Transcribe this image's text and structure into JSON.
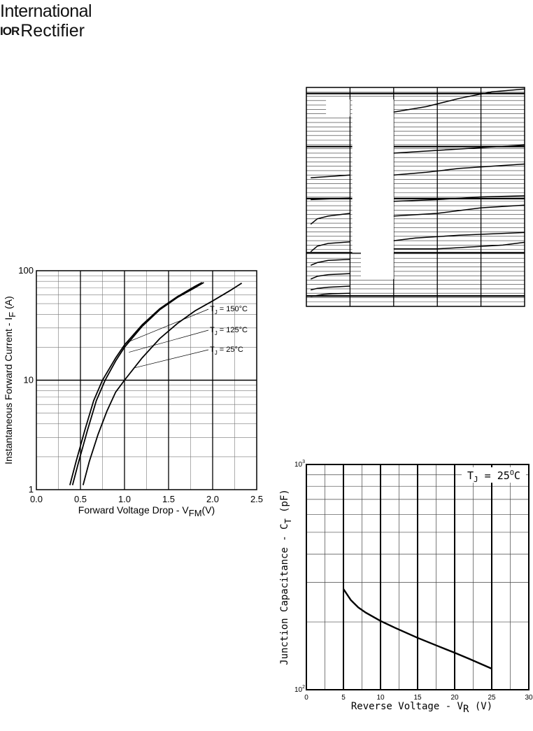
{
  "logo": {
    "line1": "International",
    "mark": "IOR",
    "line2": "Rectifier"
  },
  "chart_data": [
    {
      "type": "line",
      "title": "",
      "xlabel": "Forward Voltage Drop - V",
      "xlabel_sub": "FM",
      "xlabel_unit": "(V)",
      "ylabel": "Instantaneous Forward Current - I",
      "ylabel_sub": "F",
      "ylabel_unit": "(A)",
      "xlim": [
        0.0,
        2.5
      ],
      "ylim": [
        1,
        100
      ],
      "yscale": "log",
      "grid": true,
      "xticks": [
        "0.0",
        "0.5",
        "1.0",
        "1.5",
        "2.0",
        "2.5"
      ],
      "yticks": [
        "1",
        "10",
        "100"
      ],
      "series": [
        {
          "name": "TJ = 150°C",
          "label_parts": [
            "T",
            "J",
            " = 150°C"
          ],
          "points": [
            [
              0.38,
              1.1
            ],
            [
              0.45,
              1.8
            ],
            [
              0.55,
              3.5
            ],
            [
              0.65,
              6.5
            ],
            [
              0.75,
              10
            ],
            [
              0.9,
              16
            ],
            [
              1.0,
              21
            ],
            [
              1.2,
              32
            ],
            [
              1.4,
              45
            ],
            [
              1.6,
              58
            ],
            [
              1.8,
              72
            ],
            [
              1.88,
              78
            ]
          ]
        },
        {
          "name": "TJ = 125°C",
          "label_parts": [
            "T",
            "J",
            " = 125°C"
          ],
          "points": [
            [
              0.41,
              1.1
            ],
            [
              0.48,
              1.8
            ],
            [
              0.58,
              3.5
            ],
            [
              0.68,
              6.5
            ],
            [
              0.78,
              10
            ],
            [
              0.9,
              15
            ],
            [
              1.0,
              20
            ],
            [
              1.2,
              31
            ],
            [
              1.4,
              44
            ],
            [
              1.6,
              57
            ],
            [
              1.8,
              70
            ],
            [
              1.9,
              78
            ]
          ]
        },
        {
          "name": "TJ = 25°C",
          "label_parts": [
            "T",
            "J",
            " =   25°C"
          ],
          "points": [
            [
              0.53,
              1.1
            ],
            [
              0.6,
              1.8
            ],
            [
              0.7,
              3.2
            ],
            [
              0.8,
              5.2
            ],
            [
              0.9,
              7.8
            ],
            [
              1.0,
              10
            ],
            [
              1.2,
              16
            ],
            [
              1.4,
              24
            ],
            [
              1.6,
              33
            ],
            [
              1.8,
              43
            ],
            [
              2.0,
              53
            ],
            [
              2.2,
              66
            ],
            [
              2.33,
              77
            ]
          ]
        }
      ]
    },
    {
      "type": "line",
      "title": "",
      "xlabel": "",
      "ylabel": "",
      "grid": true,
      "yscale": "log",
      "series": [
        {
          "points": [
            [
              0.02,
              0.18
            ],
            [
              0.05,
              0.2
            ],
            [
              0.08,
              0.22
            ],
            [
              0.12,
              0.23
            ],
            [
              0.2,
              0.24
            ]
          ]
        },
        {
          "points": [
            [
              0.02,
              0.3
            ],
            [
              0.05,
              0.33
            ],
            [
              0.1,
              0.35
            ],
            [
              0.2,
              0.37
            ]
          ]
        },
        {
          "points": [
            [
              0.02,
              0.5
            ],
            [
              0.05,
              0.55
            ],
            [
              0.1,
              0.58
            ],
            [
              0.2,
              0.6
            ]
          ]
        },
        {
          "points": [
            [
              0.02,
              0.75
            ],
            [
              0.05,
              0.8
            ],
            [
              0.1,
              0.84
            ],
            [
              0.2,
              0.86
            ]
          ]
        },
        {
          "points": [
            [
              0.02,
              1.0
            ],
            [
              0.05,
              1.1
            ],
            [
              0.1,
              1.15
            ],
            [
              0.2,
              1.18
            ]
          ]
        },
        {
          "points": [
            [
              0.02,
              1.5
            ],
            [
              0.05,
              1.6
            ],
            [
              0.1,
              1.65
            ],
            [
              0.2,
              1.7
            ]
          ]
        },
        {
          "points": [
            [
              0.02,
              1.95
            ],
            [
              0.2,
              1.98
            ]
          ]
        },
        {
          "points": [
            [
              0.02,
              2.35
            ],
            [
              0.2,
              2.4
            ]
          ]
        },
        {
          "points": [
            [
              0.4,
              1.05
            ],
            [
              0.6,
              1.05
            ],
            [
              0.9,
              1.12
            ],
            [
              1.0,
              1.17
            ]
          ]
        },
        {
          "points": [
            [
              0.4,
              1.2
            ],
            [
              0.5,
              1.25
            ],
            [
              0.7,
              1.3
            ],
            [
              1.0,
              1.35
            ]
          ]
        },
        {
          "points": [
            [
              0.4,
              1.65
            ],
            [
              0.6,
              1.7
            ],
            [
              0.8,
              1.8
            ],
            [
              1.0,
              1.85
            ]
          ]
        },
        {
          "points": [
            [
              0.4,
              1.92
            ],
            [
              0.6,
              1.95
            ],
            [
              0.8,
              2.0
            ],
            [
              1.0,
              2.02
            ]
          ]
        },
        {
          "points": [
            [
              0.4,
              2.4
            ],
            [
              0.55,
              2.45
            ],
            [
              0.7,
              2.52
            ],
            [
              1.0,
              2.6
            ]
          ]
        },
        {
          "points": [
            [
              0.4,
              2.8
            ],
            [
              0.6,
              2.85
            ],
            [
              0.8,
              2.9
            ],
            [
              1.0,
              2.95
            ]
          ]
        },
        {
          "points": [
            [
              0.4,
              3.55
            ],
            [
              0.55,
              3.65
            ],
            [
              0.7,
              3.8
            ],
            [
              0.85,
              3.92
            ],
            [
              1.0,
              3.97
            ]
          ]
        }
      ]
    },
    {
      "type": "line",
      "title": "",
      "xlabel": "Reverse Voltage - V",
      "xlabel_sub": "R",
      "xlabel_unit": "(V)",
      "ylabel": "Junction Capacitance - C",
      "ylabel_sub": "T",
      "ylabel_unit": "(pF)",
      "annotation_parts": [
        "T",
        "J",
        " = 25",
        "O",
        "C"
      ],
      "xlim": [
        0,
        30
      ],
      "ylim": [
        100,
        1000
      ],
      "yscale": "log",
      "grid": true,
      "xticks": [
        "0",
        "5",
        "10",
        "15",
        "20",
        "25",
        "30"
      ],
      "yticks": [
        {
          "base": "10",
          "exp": "2"
        },
        {
          "base": "10",
          "exp": "3"
        }
      ],
      "series": [
        {
          "name": "",
          "points": [
            [
              5,
              280
            ],
            [
              6,
              250
            ],
            [
              7,
              232
            ],
            [
              8,
              220
            ],
            [
              10,
              202
            ],
            [
              12,
              188
            ],
            [
              15,
              170
            ],
            [
              18,
              155
            ],
            [
              20,
              146
            ],
            [
              22,
              137
            ],
            [
              25,
              124
            ]
          ]
        }
      ]
    }
  ]
}
